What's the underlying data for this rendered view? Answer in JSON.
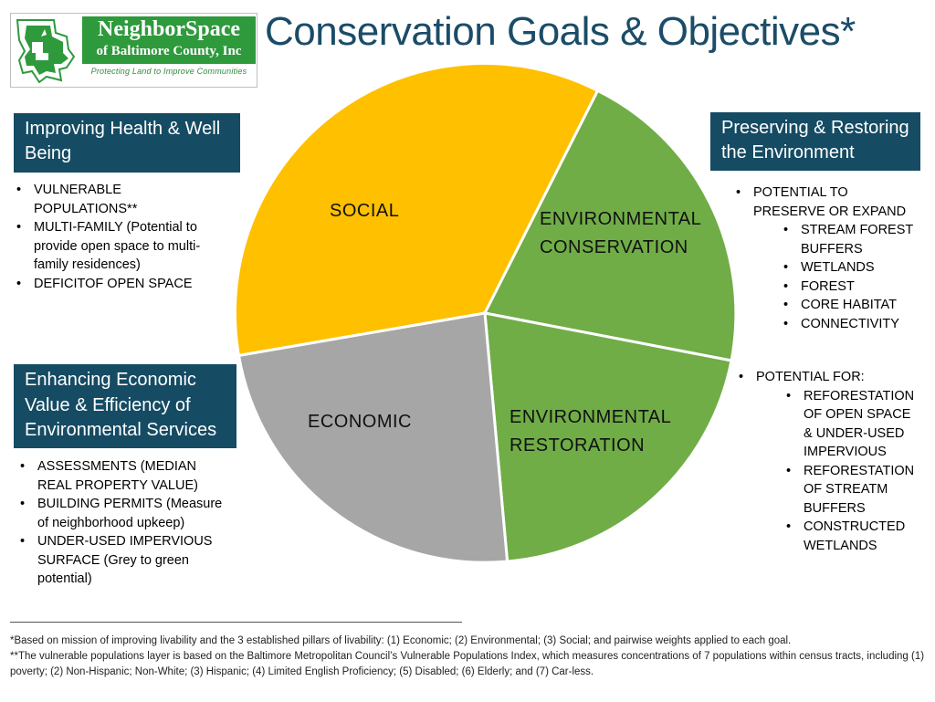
{
  "logo": {
    "name_line1": "NeighborSpace",
    "name_line2": "of Baltimore County, Inc",
    "tagline": "Protecting Land to Improve Communities",
    "icon": "baltimore-county-map-icon"
  },
  "title": "Conservation Goals & Objectives*",
  "colors": {
    "header_bg": "#154b63",
    "title": "#1b4c68",
    "social": "#ffc000",
    "economic": "#a6a6a6",
    "environmental": "#70ad47",
    "logo_green": "#2e9a3c"
  },
  "pie": {
    "segments": [
      {
        "label_lines": [
          "SOCIAL"
        ],
        "color": "#ffc000"
      },
      {
        "label_lines": [
          "ENVIRONMENTAL",
          "CONSERVATION"
        ],
        "color": "#70ad47"
      },
      {
        "label_lines": [
          "ENVIRONMENTAL",
          "RESTORATION"
        ],
        "color": "#70ad47"
      },
      {
        "label_lines": [
          "ECONOMIC"
        ],
        "color": "#a6a6a6"
      }
    ]
  },
  "health": {
    "header": "Improving Health & Well Being",
    "items": [
      "VULNERABLE POPULATIONS**",
      "MULTI-FAMILY (Potential to provide open space to multi-family residences)",
      "DEFICITOF OPEN SPACE"
    ]
  },
  "economic": {
    "header": "Enhancing Economic Value & Efficiency of Environmental Services",
    "items": [
      "ASSESSMENTS (MEDIAN REAL PROPERTY VALUE)",
      "BUILDING PERMITS (Measure of neighborhood upkeep)",
      "UNDER-USED IMPERVIOUS SURFACE (Grey to green potential)"
    ]
  },
  "preserve": {
    "header": "Preserving & Restoring the Environment",
    "intro": "POTENTIAL TO PRESERVE OR EXPAND",
    "items": [
      "STREAM FOREST BUFFERS",
      "WETLANDS",
      "FOREST",
      "CORE HABITAT",
      "CONNECTIVITY"
    ]
  },
  "restore": {
    "intro": "POTENTIAL  FOR:",
    "items": [
      "REFORESTATION OF OPEN SPACE & UNDER-USED IMPERVIOUS",
      "REFORESTATION OF STREATM BUFFERS",
      "CONSTRUCTED WETLANDS"
    ]
  },
  "footnotes": [
    "*Based on mission of improving livability and the 3 established pillars of livability:  (1) Economic; (2) Environmental; (3) Social; and pairwise weights applied to each goal.",
    "**The vulnerable populations layer is based on the Baltimore Metropolitan Council’s Vulnerable Populations Index, which measures concentrations of 7 populations within census tracts, including (1) poverty; (2) Non-Hispanic; Non-White; (3) Hispanic; (4) Limited English Proficiency;  (5) Disabled; (6) Elderly; and (7) Car-less."
  ]
}
